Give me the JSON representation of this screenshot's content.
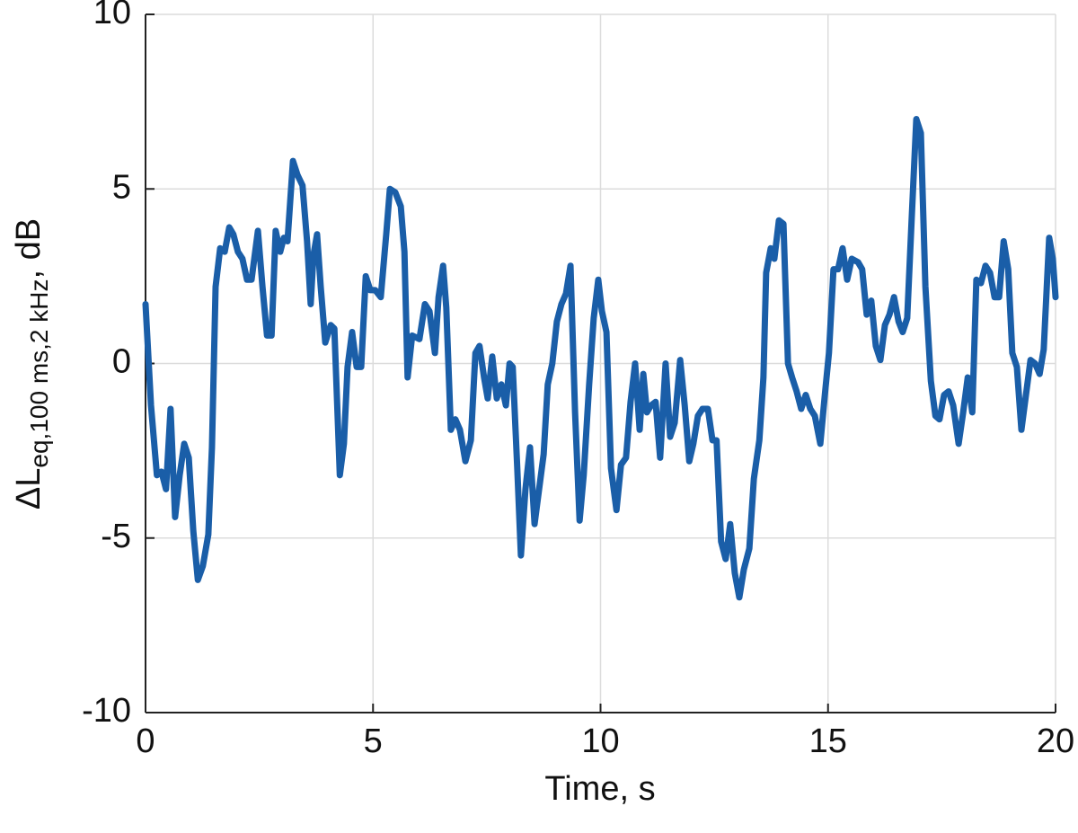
{
  "chart_data": {
    "type": "line",
    "x_label": "Time, s",
    "y_label": {
      "main": "ΔL",
      "subscript": "eq,100 ms,2 kHz",
      "suffix": ", dB"
    },
    "color": "#1a5ea8",
    "grid": true,
    "xlim": [
      0,
      20
    ],
    "xticks": [
      0,
      5,
      10,
      15,
      20
    ],
    "ylim": [
      -10,
      10
    ],
    "yticks": [
      -10,
      -5,
      0,
      5,
      10
    ],
    "x": [
      0,
      0.12,
      0.25,
      0.35,
      0.45,
      0.55,
      0.65,
      0.75,
      0.85,
      0.95,
      1.05,
      1.15,
      1.26,
      1.38,
      1.46,
      1.54,
      1.64,
      1.74,
      1.84,
      1.93,
      2.03,
      2.13,
      2.23,
      2.33,
      2.47,
      2.57,
      2.67,
      2.77,
      2.86,
      2.96,
      3.04,
      3.12,
      3.24,
      3.34,
      3.45,
      3.55,
      3.63,
      3.69,
      3.77,
      3.85,
      3.95,
      4.07,
      4.15,
      4.27,
      4.36,
      4.44,
      4.54,
      4.64,
      4.74,
      4.84,
      4.94,
      5.05,
      5.17,
      5.29,
      5.37,
      5.49,
      5.61,
      5.69,
      5.76,
      5.86,
      6.02,
      6.14,
      6.24,
      6.36,
      6.44,
      6.54,
      6.61,
      6.71,
      6.81,
      6.91,
      7.03,
      7.15,
      7.25,
      7.34,
      7.44,
      7.52,
      7.62,
      7.72,
      7.82,
      7.92,
      8.0,
      8.07,
      8.17,
      8.25,
      8.35,
      8.45,
      8.55,
      8.65,
      8.75,
      8.84,
      8.94,
      9.04,
      9.14,
      9.24,
      9.34,
      9.44,
      9.54,
      9.63,
      9.75,
      9.85,
      9.95,
      10.03,
      10.13,
      10.23,
      10.35,
      10.45,
      10.56,
      10.66,
      10.76,
      10.86,
      10.94,
      11.02,
      11.11,
      11.21,
      11.31,
      11.43,
      11.53,
      11.63,
      11.75,
      11.85,
      11.95,
      12.04,
      12.14,
      12.24,
      12.36,
      12.46,
      12.55,
      12.65,
      12.75,
      12.85,
      12.95,
      13.05,
      13.15,
      13.27,
      13.37,
      13.49,
      13.58,
      13.64,
      13.74,
      13.82,
      13.92,
      14.02,
      14.12,
      14.21,
      14.31,
      14.41,
      14.51,
      14.61,
      14.71,
      14.83,
      14.93,
      15.02,
      15.12,
      15.22,
      15.32,
      15.42,
      15.52,
      15.66,
      15.75,
      15.85,
      15.95,
      16.05,
      16.15,
      16.25,
      16.35,
      16.45,
      16.55,
      16.64,
      16.74,
      16.84,
      16.94,
      17.04,
      17.14,
      17.26,
      17.36,
      17.45,
      17.55,
      17.65,
      17.75,
      17.87,
      17.97,
      18.07,
      18.17,
      18.26,
      18.36,
      18.46,
      18.56,
      18.66,
      18.76,
      18.86,
      18.96,
      19.05,
      19.15,
      19.25,
      19.35,
      19.45,
      19.55,
      19.65,
      19.74,
      19.86,
      19.94,
      20.0
    ],
    "values": [
      1.7,
      -1.2,
      -3.2,
      -3.1,
      -3.6,
      -1.3,
      -4.4,
      -3.2,
      -2.3,
      -2.7,
      -4.8,
      -6.2,
      -5.8,
      -4.9,
      -2.4,
      2.2,
      3.3,
      3.2,
      3.9,
      3.7,
      3.2,
      3.0,
      2.4,
      2.4,
      3.8,
      2.2,
      0.8,
      0.8,
      3.8,
      3.2,
      3.6,
      3.5,
      5.8,
      5.4,
      5.1,
      3.5,
      1.7,
      3.1,
      3.7,
      2.2,
      0.6,
      1.1,
      1.0,
      -3.2,
      -2.3,
      -0.1,
      0.9,
      -0.1,
      -0.1,
      2.5,
      2.1,
      2.1,
      1.9,
      3.7,
      5.0,
      4.9,
      4.5,
      3.2,
      -0.4,
      0.8,
      0.7,
      1.7,
      1.5,
      0.3,
      1.9,
      2.8,
      1.6,
      -1.9,
      -1.6,
      -1.9,
      -2.8,
      -2.2,
      0.3,
      0.5,
      -0.4,
      -1.0,
      0.2,
      -1.0,
      -0.6,
      -1.2,
      0.0,
      -0.1,
      -3.0,
      -5.5,
      -3.6,
      -2.4,
      -4.6,
      -3.6,
      -2.6,
      -0.6,
      0.0,
      1.2,
      1.7,
      2.0,
      2.8,
      -1.4,
      -4.5,
      -3.2,
      -0.6,
      1.3,
      2.4,
      1.5,
      0.9,
      -3.0,
      -4.2,
      -2.9,
      -2.7,
      -1.1,
      0.0,
      -1.9,
      -0.3,
      -1.4,
      -1.2,
      -1.1,
      -2.7,
      0.0,
      -2.1,
      -1.7,
      0.1,
      -1.2,
      -2.8,
      -2.3,
      -1.5,
      -1.3,
      -1.3,
      -2.2,
      -2.2,
      -5.1,
      -5.6,
      -4.6,
      -6.0,
      -6.7,
      -5.9,
      -5.3,
      -3.3,
      -2.2,
      -0.4,
      2.6,
      3.3,
      3.0,
      4.1,
      4.0,
      0.0,
      -0.4,
      -0.8,
      -1.3,
      -0.9,
      -1.3,
      -1.5,
      -2.3,
      -0.9,
      0.3,
      2.7,
      2.7,
      3.3,
      2.4,
      3.0,
      2.9,
      2.7,
      1.4,
      1.8,
      0.5,
      0.1,
      1.1,
      1.4,
      1.9,
      1.2,
      0.9,
      1.3,
      4.2,
      7.0,
      6.6,
      2.2,
      -0.5,
      -1.5,
      -1.6,
      -0.9,
      -0.8,
      -1.2,
      -2.3,
      -1.4,
      -0.4,
      -1.4,
      2.4,
      2.3,
      2.8,
      2.6,
      1.9,
      1.9,
      3.5,
      2.7,
      0.3,
      -0.1,
      -1.9,
      -0.9,
      0.1,
      0.0,
      -0.3,
      0.4,
      3.6,
      3.0,
      1.9
    ]
  }
}
